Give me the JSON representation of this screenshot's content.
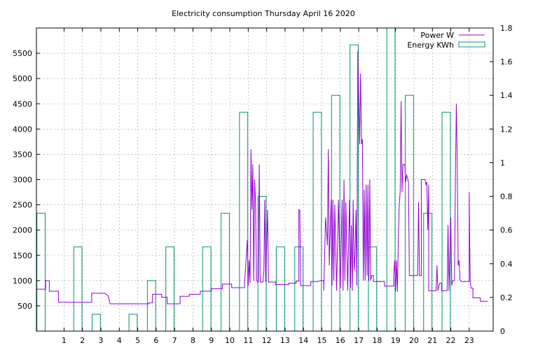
{
  "chart_data": {
    "type": "line",
    "title": "Electricity consumption Thursday April 16 2020",
    "grid": true,
    "legend_position": "top-right",
    "x_axis": {
      "range": [
        -0.5,
        24.3
      ],
      "ticks": [
        1,
        2,
        3,
        4,
        5,
        6,
        7,
        8,
        9,
        10,
        11,
        12,
        13,
        14,
        15,
        16,
        17,
        18,
        19,
        20,
        21,
        22,
        23
      ]
    },
    "y_axis_left": {
      "label": "",
      "range": [
        0,
        6000
      ],
      "ticks": [
        500,
        1000,
        1500,
        2000,
        2500,
        3000,
        3500,
        4000,
        4500,
        5000,
        5500
      ]
    },
    "y_axis_right": {
      "label": "",
      "range": [
        0,
        1.8
      ],
      "ticks": [
        "0",
        "0.2",
        "0.4",
        "0.6",
        "0.8",
        "1",
        "1.2",
        "1.4",
        "1.6",
        "1.8"
      ]
    },
    "series": [
      {
        "name": "Power W",
        "color": "#9400d3",
        "axis": "left",
        "type": "line",
        "points": [
          [
            -0.5,
            830
          ],
          [
            0,
            830
          ],
          [
            0,
            1000
          ],
          [
            0.2,
            1000
          ],
          [
            0.2,
            790
          ],
          [
            0.7,
            790
          ],
          [
            0.7,
            570
          ],
          [
            2.5,
            570
          ],
          [
            2.5,
            750
          ],
          [
            3.2,
            750
          ],
          [
            3.4,
            700
          ],
          [
            3.5,
            540
          ],
          [
            5.6,
            540
          ],
          [
            5.6,
            560
          ],
          [
            5.8,
            560
          ],
          [
            5.8,
            730
          ],
          [
            6.3,
            730
          ],
          [
            6.3,
            670
          ],
          [
            6.6,
            670
          ],
          [
            6.6,
            540
          ],
          [
            7.3,
            540
          ],
          [
            7.3,
            690
          ],
          [
            7.8,
            690
          ],
          [
            7.8,
            730
          ],
          [
            8.4,
            730
          ],
          [
            8.4,
            790
          ],
          [
            9,
            790
          ],
          [
            9,
            840
          ],
          [
            9.6,
            840
          ],
          [
            9.6,
            930
          ],
          [
            10.1,
            930
          ],
          [
            10.1,
            860
          ],
          [
            10.8,
            860
          ],
          [
            10.8,
            930
          ],
          [
            10.95,
            1800
          ],
          [
            11,
            900
          ],
          [
            11.05,
            1400
          ],
          [
            11.1,
            950
          ],
          [
            11.15,
            3600
          ],
          [
            11.2,
            2400
          ],
          [
            11.25,
            3300
          ],
          [
            11.3,
            1000
          ],
          [
            11.35,
            3000
          ],
          [
            11.4,
            2500
          ],
          [
            11.45,
            1000
          ],
          [
            11.55,
            970
          ],
          [
            11.6,
            3300
          ],
          [
            11.65,
            970
          ],
          [
            11.8,
            970
          ],
          [
            11.85,
            1200
          ],
          [
            11.9,
            2600
          ],
          [
            11.95,
            970
          ],
          [
            12.05,
            2400
          ],
          [
            12.1,
            970
          ],
          [
            12.5,
            970
          ],
          [
            12.5,
            920
          ],
          [
            13.2,
            920
          ],
          [
            13.2,
            950
          ],
          [
            13.6,
            950
          ],
          [
            13.6,
            990
          ],
          [
            13.75,
            990
          ],
          [
            13.75,
            2400
          ],
          [
            13.8,
            2400
          ],
          [
            13.85,
            900
          ],
          [
            14.4,
            900
          ],
          [
            14.4,
            980
          ],
          [
            14.8,
            980
          ],
          [
            14.9,
            1000
          ],
          [
            15.1,
            1000
          ],
          [
            15.1,
            800
          ],
          [
            15.2,
            2250
          ],
          [
            15.3,
            1700
          ],
          [
            15.35,
            3600
          ],
          [
            15.4,
            1300
          ],
          [
            15.5,
            2600
          ],
          [
            15.55,
            900
          ],
          [
            15.6,
            2600
          ],
          [
            15.65,
            1000
          ],
          [
            15.7,
            2500
          ],
          [
            15.8,
            800
          ],
          [
            15.9,
            2600
          ],
          [
            16,
            850
          ],
          [
            16.1,
            2600
          ],
          [
            16.15,
            800
          ],
          [
            16.2,
            3000
          ],
          [
            16.25,
            1000
          ],
          [
            16.3,
            2550
          ],
          [
            16.4,
            800
          ],
          [
            16.5,
            2600
          ],
          [
            16.55,
            850
          ],
          [
            16.6,
            2100
          ],
          [
            16.65,
            800
          ],
          [
            16.7,
            2600
          ],
          [
            16.75,
            1200
          ],
          [
            16.8,
            1500
          ],
          [
            16.85,
            2400
          ],
          [
            16.9,
            900
          ],
          [
            16.95,
            5550
          ],
          [
            17,
            4600
          ],
          [
            17.05,
            3700
          ],
          [
            17.1,
            5100
          ],
          [
            17.15,
            3700
          ],
          [
            17.2,
            3800
          ],
          [
            17.25,
            1000
          ],
          [
            17.3,
            2800
          ],
          [
            17.35,
            1000
          ],
          [
            17.4,
            2900
          ],
          [
            17.45,
            1100
          ],
          [
            17.5,
            2900
          ],
          [
            17.55,
            1000
          ],
          [
            17.6,
            3000
          ],
          [
            17.65,
            1000
          ],
          [
            17.7,
            1100
          ],
          [
            17.8,
            1100
          ],
          [
            17.8,
            980
          ],
          [
            18.4,
            980
          ],
          [
            18.4,
            890
          ],
          [
            18.9,
            890
          ],
          [
            18.9,
            1100
          ],
          [
            18.95,
            1400
          ],
          [
            19,
            780
          ],
          [
            19.05,
            1400
          ],
          [
            19.1,
            780
          ],
          [
            19.15,
            1800
          ],
          [
            19.2,
            2500
          ],
          [
            19.25,
            2750
          ],
          [
            19.3,
            4550
          ],
          [
            19.35,
            2750
          ],
          [
            19.4,
            3300
          ],
          [
            19.5,
            3300
          ],
          [
            19.55,
            2950
          ],
          [
            19.6,
            3100
          ],
          [
            19.7,
            2950
          ],
          [
            19.75,
            1100
          ],
          [
            20.2,
            1100
          ],
          [
            20.25,
            2550
          ],
          [
            20.3,
            1100
          ],
          [
            20.4,
            1100
          ],
          [
            20.4,
            3000
          ],
          [
            20.6,
            3000
          ],
          [
            20.65,
            2900
          ],
          [
            20.7,
            2950
          ],
          [
            20.75,
            2000
          ],
          [
            20.8,
            2900
          ],
          [
            20.8,
            800
          ],
          [
            21.2,
            800
          ],
          [
            21.25,
            1300
          ],
          [
            21.3,
            800
          ],
          [
            21.4,
            950
          ],
          [
            21.5,
            950
          ],
          [
            21.5,
            800
          ],
          [
            21.8,
            800
          ],
          [
            21.85,
            2100
          ],
          [
            21.9,
            800
          ],
          [
            22,
            2250
          ],
          [
            22.05,
            900
          ],
          [
            22.1,
            1000
          ],
          [
            22.2,
            1000
          ],
          [
            22.25,
            3000
          ],
          [
            22.3,
            4500
          ],
          [
            22.35,
            3300
          ],
          [
            22.4,
            1300
          ],
          [
            22.45,
            1400
          ],
          [
            22.5,
            1000
          ],
          [
            22.6,
            980
          ],
          [
            23,
            980
          ],
          [
            23,
            2750
          ],
          [
            23.05,
            1000
          ],
          [
            23.1,
            850
          ],
          [
            23.2,
            850
          ],
          [
            23.2,
            660
          ],
          [
            23.6,
            660
          ],
          [
            23.6,
            590
          ],
          [
            24,
            590
          ]
        ]
      },
      {
        "name": "Energy KWh",
        "color": "#009473",
        "axis": "right",
        "type": "bar",
        "bins": [
          {
            "hour": 0,
            "value": 0.7
          },
          {
            "hour": 1,
            "value": 0
          },
          {
            "hour": 2,
            "value": 0.5
          },
          {
            "hour": 3,
            "value": 0.1
          },
          {
            "hour": 4,
            "value": 0
          },
          {
            "hour": 5,
            "value": 0.1
          },
          {
            "hour": 6,
            "value": 0.3
          },
          {
            "hour": 7,
            "value": 0.5
          },
          {
            "hour": 8,
            "value": 0
          },
          {
            "hour": 9,
            "value": 0.5
          },
          {
            "hour": 10,
            "value": 0.7
          },
          {
            "hour": 11,
            "value": 1.3
          },
          {
            "hour": 12,
            "value": 0.8
          },
          {
            "hour": 13,
            "value": 0.5
          },
          {
            "hour": 14,
            "value": 0.5
          },
          {
            "hour": 15,
            "value": 1.3
          },
          {
            "hour": 16,
            "value": 1.4
          },
          {
            "hour": 17,
            "value": 1.7
          },
          {
            "hour": 18,
            "value": 0.5
          },
          {
            "hour": 19,
            "value": 1.8
          },
          {
            "hour": 20,
            "value": 1.4
          },
          {
            "hour": 21,
            "value": 0.7
          },
          {
            "hour": 22,
            "value": 1.3
          },
          {
            "hour": 23,
            "value": 0
          }
        ]
      }
    ]
  }
}
